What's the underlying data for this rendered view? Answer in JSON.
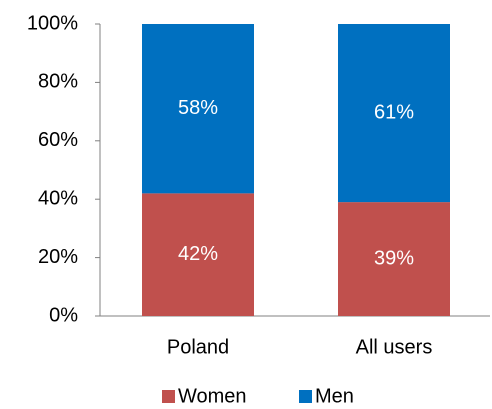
{
  "chart_data": {
    "type": "stacked_bar",
    "categories": [
      "Poland",
      "All users"
    ],
    "series": [
      {
        "name": "Women",
        "color": "#c0504d",
        "values": [
          42,
          39
        ],
        "value_labels": [
          "42%",
          "39%"
        ]
      },
      {
        "name": "Men",
        "color": "#0070c0",
        "values": [
          58,
          61
        ],
        "value_labels": [
          "58%",
          "61%"
        ]
      }
    ],
    "ylim": [
      0,
      100
    ],
    "yticks": [
      {
        "value": 0,
        "label": "0%"
      },
      {
        "value": 20,
        "label": "20%"
      },
      {
        "value": 40,
        "label": "40%"
      },
      {
        "value": 60,
        "label": "60%"
      },
      {
        "value": 80,
        "label": "80%"
      },
      {
        "value": 100,
        "label": "100%"
      }
    ],
    "legend": "bottom"
  }
}
